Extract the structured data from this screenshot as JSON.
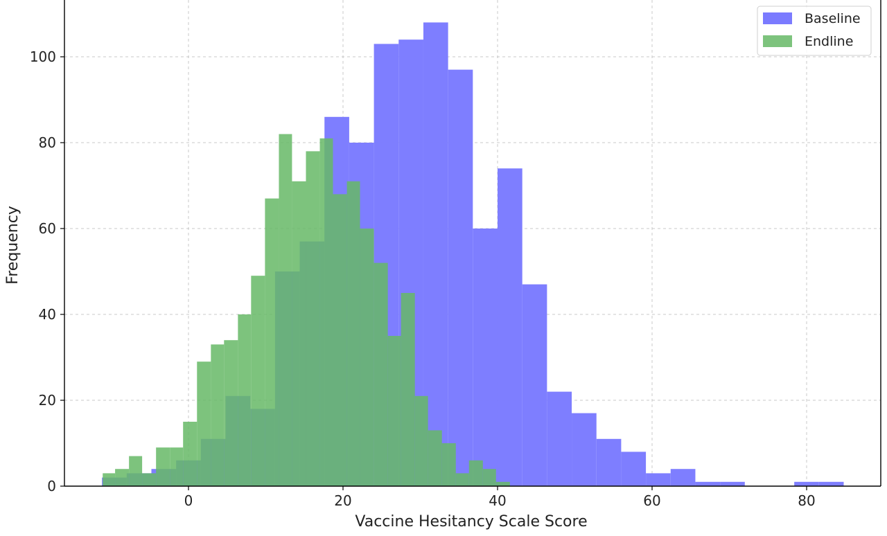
{
  "chart_data": {
    "type": "histogram",
    "xlabel": "Vaccine Hesitancy Scale Score",
    "ylabel": "Frequency",
    "xlim": [
      -20,
      90
    ],
    "ylim": [
      0,
      110
    ],
    "xticks": [
      0,
      20,
      40,
      60,
      80
    ],
    "yticks": [
      0,
      20,
      40,
      60,
      80,
      100
    ],
    "grid": true,
    "legend_position": "top-right",
    "series": [
      {
        "name": "Baseline",
        "color": "#7b7bff",
        "bin_edges": [
          -11.2,
          -8.0,
          -4.8,
          -1.6,
          1.6,
          4.8,
          8.0,
          11.2,
          14.4,
          17.6,
          20.8,
          24.0,
          27.2,
          30.4,
          33.6,
          36.8,
          40.0,
          43.2,
          46.4,
          49.6,
          52.8,
          56.0,
          59.2,
          62.4,
          65.6,
          68.8,
          72.0,
          75.2,
          78.4,
          81.6,
          84.8
        ],
        "counts": [
          2,
          3,
          4,
          6,
          11,
          21,
          18,
          50,
          57,
          86,
          80,
          103,
          104,
          108,
          97,
          60,
          74,
          47,
          22,
          17,
          11,
          8,
          3,
          4,
          1,
          1,
          0,
          0,
          1,
          1
        ]
      },
      {
        "name": "Endline",
        "color": "#66b866",
        "bin_edges": [
          -11.1,
          -9.5,
          -7.7,
          -6.0,
          -4.2,
          -2.4,
          -0.7,
          1.1,
          2.9,
          4.6,
          6.4,
          8.1,
          9.9,
          11.7,
          13.4,
          15.2,
          17.0,
          18.7,
          20.5,
          22.2,
          24.0,
          25.8,
          27.5,
          29.3,
          31.0,
          32.8,
          34.6,
          36.3,
          38.1,
          39.8,
          41.6
        ],
        "counts": [
          3,
          4,
          7,
          3,
          9,
          9,
          15,
          29,
          33,
          34,
          40,
          49,
          67,
          82,
          71,
          78,
          81,
          68,
          71,
          60,
          52,
          35,
          45,
          21,
          13,
          10,
          3,
          6,
          4,
          1
        ]
      }
    ]
  }
}
